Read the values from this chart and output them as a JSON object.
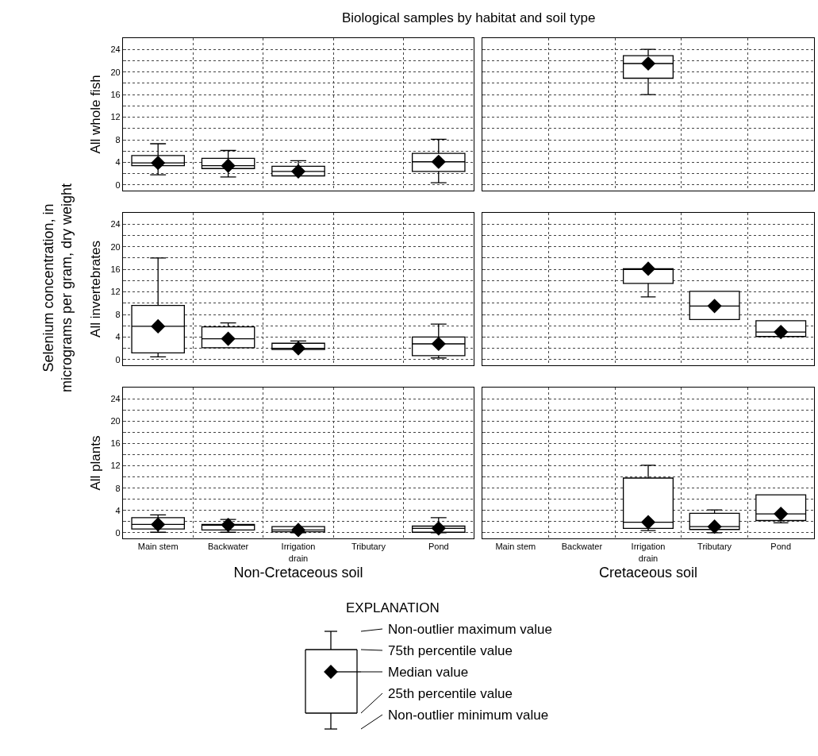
{
  "chart_data": [
    {
      "type": "box",
      "title": "Biological samples by habitat and soil type",
      "annotations": [
        "Selenium concentration, in micrograms per gram, dry weight"
      ],
      "ylabel": "All whole fish",
      "categories": [
        "Main stem",
        "Backwater",
        "Irrigation drain",
        "Tributary",
        "Pond"
      ],
      "color": "#000000",
      "marker": "diamond",
      "grid": true,
      "tick_labels": "y",
      "ylim": [
        -1,
        26
      ],
      "yticks": [
        0,
        {
          "value": 2,
          "label": null
        },
        4,
        {
          "value": 6,
          "label": null
        },
        8,
        {
          "value": 10,
          "label": null
        },
        12,
        {
          "value": 14,
          "label": null
        },
        16,
        {
          "value": 18,
          "label": null
        },
        20,
        {
          "value": 22,
          "label": null
        },
        24
      ],
      "boxes": [
        {
          "low": 1.8,
          "q1": 3.4,
          "median": 3.9,
          "q3": 5.2,
          "high": 7.3
        },
        {
          "low": 1.4,
          "q1": 2.9,
          "median": 3.4,
          "q3": 4.7,
          "high": 6.1
        },
        {
          "low": 1.6,
          "q1": 1.6,
          "median": 2.4,
          "q3": 3.3,
          "high": 4.3
        },
        null,
        {
          "low": 0.4,
          "q1": 2.4,
          "median": 4.1,
          "q3": 5.6,
          "high": 8.1
        }
      ],
      "series": [
        {
          "type": "scatter",
          "color": "#000000",
          "x": [
            "Main stem",
            "Backwater",
            "Irrigation drain",
            "Pond"
          ],
          "values": [
            3.9,
            3.4,
            2.4,
            4.1
          ]
        }
      ]
    },
    {
      "type": "box",
      "categories": [
        "Main stem",
        "Backwater",
        "Irrigation drain",
        "Tributary",
        "Pond"
      ],
      "color": "#000000",
      "marker": "diamond",
      "grid": true,
      "tick_labels": false,
      "ylim": [
        -1,
        26
      ],
      "yticks": [
        0,
        {
          "value": 2,
          "label": null
        },
        4,
        {
          "value": 6,
          "label": null
        },
        8,
        {
          "value": 10,
          "label": null
        },
        12,
        {
          "value": 14,
          "label": null
        },
        16,
        {
          "value": 18,
          "label": null
        },
        20,
        {
          "value": 22,
          "label": null
        },
        24
      ],
      "boxes": [
        null,
        null,
        {
          "low": 16.0,
          "q1": 18.9,
          "median": 21.5,
          "q3": 22.9,
          "high": 24.0
        },
        null,
        null
      ],
      "series": [
        {
          "type": "scatter",
          "color": "#000000",
          "x": [
            "Irrigation drain"
          ],
          "values": [
            21.5
          ]
        }
      ]
    },
    {
      "type": "box",
      "ylabel": "All invertebrates",
      "categories": [
        "Main stem",
        "Backwater",
        "Irrigation drain",
        "Tributary",
        "Pond"
      ],
      "color": "#000000",
      "marker": "diamond",
      "grid": true,
      "tick_labels": "y",
      "ylim": [
        -1,
        26
      ],
      "yticks": [
        0,
        {
          "value": 2,
          "label": null
        },
        4,
        {
          "value": 6,
          "label": null
        },
        8,
        {
          "value": 10,
          "label": null
        },
        12,
        {
          "value": 14,
          "label": null
        },
        16,
        {
          "value": 18,
          "label": null
        },
        20,
        {
          "value": 22,
          "label": null
        },
        24
      ],
      "boxes": [
        {
          "low": 0.5,
          "q1": 1.2,
          "median": 5.9,
          "q3": 9.6,
          "high": 18.0
        },
        {
          "low": 2.1,
          "q1": 2.1,
          "median": 3.7,
          "q3": 5.8,
          "high": 6.5
        },
        {
          "low": 1.8,
          "q1": 1.8,
          "median": 2.0,
          "q3": 2.9,
          "high": 3.3
        },
        null,
        {
          "low": 0.3,
          "q1": 0.7,
          "median": 2.8,
          "q3": 4.0,
          "high": 6.3
        }
      ],
      "series": [
        {
          "type": "scatter",
          "color": "#000000",
          "x": [
            "Main stem",
            "Backwater",
            "Irrigation drain",
            "Pond"
          ],
          "values": [
            5.9,
            3.7,
            2.0,
            2.8
          ]
        }
      ]
    },
    {
      "type": "box",
      "categories": [
        "Main stem",
        "Backwater",
        "Irrigation drain",
        "Tributary",
        "Pond"
      ],
      "color": "#000000",
      "marker": "diamond",
      "grid": true,
      "tick_labels": false,
      "ylim": [
        -1,
        26
      ],
      "yticks": [
        0,
        {
          "value": 2,
          "label": null
        },
        4,
        {
          "value": 6,
          "label": null
        },
        8,
        {
          "value": 10,
          "label": null
        },
        12,
        {
          "value": 14,
          "label": null
        },
        16,
        {
          "value": 18,
          "label": null
        },
        20,
        {
          "value": 22,
          "label": null
        },
        24
      ],
      "boxes": [
        null,
        null,
        {
          "low": 11.1,
          "q1": 13.5,
          "median": 16.1,
          "q3": 16.1,
          "high": 16.1
        },
        {
          "low": 7.1,
          "q1": 7.1,
          "median": 9.5,
          "q3": 12.1,
          "high": 12.1
        },
        {
          "low": 4.1,
          "q1": 4.1,
          "median": 4.9,
          "q3": 6.9,
          "high": 6.9
        }
      ],
      "series": [
        {
          "type": "scatter",
          "color": "#000000",
          "x": [
            "Irrigation drain",
            "Tributary",
            "Pond"
          ],
          "values": [
            16.1,
            9.5,
            4.9
          ]
        }
      ]
    },
    {
      "type": "box",
      "ylabel": "All plants",
      "xlabel": "Non-Cretaceous soil",
      "categories": [
        "Main stem",
        "Backwater",
        "Irrigation drain",
        "Tributary",
        "Pond"
      ],
      "color": "#000000",
      "marker": "diamond",
      "grid": true,
      "ylim": [
        -1,
        26
      ],
      "yticks": [
        0,
        {
          "value": 2,
          "label": null
        },
        4,
        {
          "value": 6,
          "label": null
        },
        8,
        {
          "value": 10,
          "label": null
        },
        12,
        {
          "value": 14,
          "label": null
        },
        16,
        {
          "value": 18,
          "label": null
        },
        20,
        {
          "value": 22,
          "label": null
        },
        24
      ],
      "boxes": [
        {
          "low": 0.1,
          "q1": 0.7,
          "median": 1.5,
          "q3": 2.7,
          "high": 3.2
        },
        {
          "low": 0.1,
          "q1": 0.5,
          "median": 1.4,
          "q3": 1.5,
          "high": 2.4
        },
        {
          "low": 0,
          "q1": 0.2,
          "median": 0.5,
          "q3": 1.1,
          "high": 1.1
        },
        null,
        {
          "low": 0,
          "q1": 0.1,
          "median": 0.8,
          "q3": 1.2,
          "high": 2.7
        }
      ],
      "series": [
        {
          "type": "scatter",
          "color": "#000000",
          "x": [
            "Main stem",
            "Backwater",
            "Irrigation drain",
            "Pond"
          ],
          "values": [
            1.5,
            1.4,
            0.5,
            0.8
          ]
        }
      ]
    },
    {
      "type": "box",
      "xlabel": "Cretaceous soil",
      "categories": [
        "Main stem",
        "Backwater",
        "Irrigation drain",
        "Tributary",
        "Pond"
      ],
      "color": "#000000",
      "marker": "diamond",
      "grid": true,
      "tick_labels": "x",
      "ylim": [
        -1,
        26
      ],
      "yticks": [
        0,
        {
          "value": 2,
          "label": null
        },
        4,
        {
          "value": 6,
          "label": null
        },
        8,
        {
          "value": 10,
          "label": null
        },
        12,
        {
          "value": 14,
          "label": null
        },
        16,
        {
          "value": 18,
          "label": null
        },
        20,
        {
          "value": 22,
          "label": null
        },
        24
      ],
      "boxes": [
        null,
        null,
        {
          "low": 0.4,
          "q1": 0.8,
          "median": 1.9,
          "q3": 9.8,
          "high": 12.1
        },
        {
          "low": 0,
          "q1": 0.6,
          "median": 1.1,
          "q3": 3.5,
          "high": 4.1
        },
        {
          "low": 1.8,
          "q1": 2.2,
          "median": 3.4,
          "q3": 6.8,
          "high": 6.8
        }
      ],
      "series": [
        {
          "type": "scatter",
          "color": "#000000",
          "x": [
            "Irrigation drain",
            "Tributary",
            "Pond"
          ],
          "values": [
            1.9,
            1.1,
            3.4
          ]
        }
      ]
    },
    {
      "type": "other",
      "title": "EXPLANATION",
      "annotations": [
        "Non-outlier maximum value",
        "75th percentile value",
        "Median value",
        "25th percentile value",
        "Non-outlier minimum value"
      ]
    }
  ]
}
